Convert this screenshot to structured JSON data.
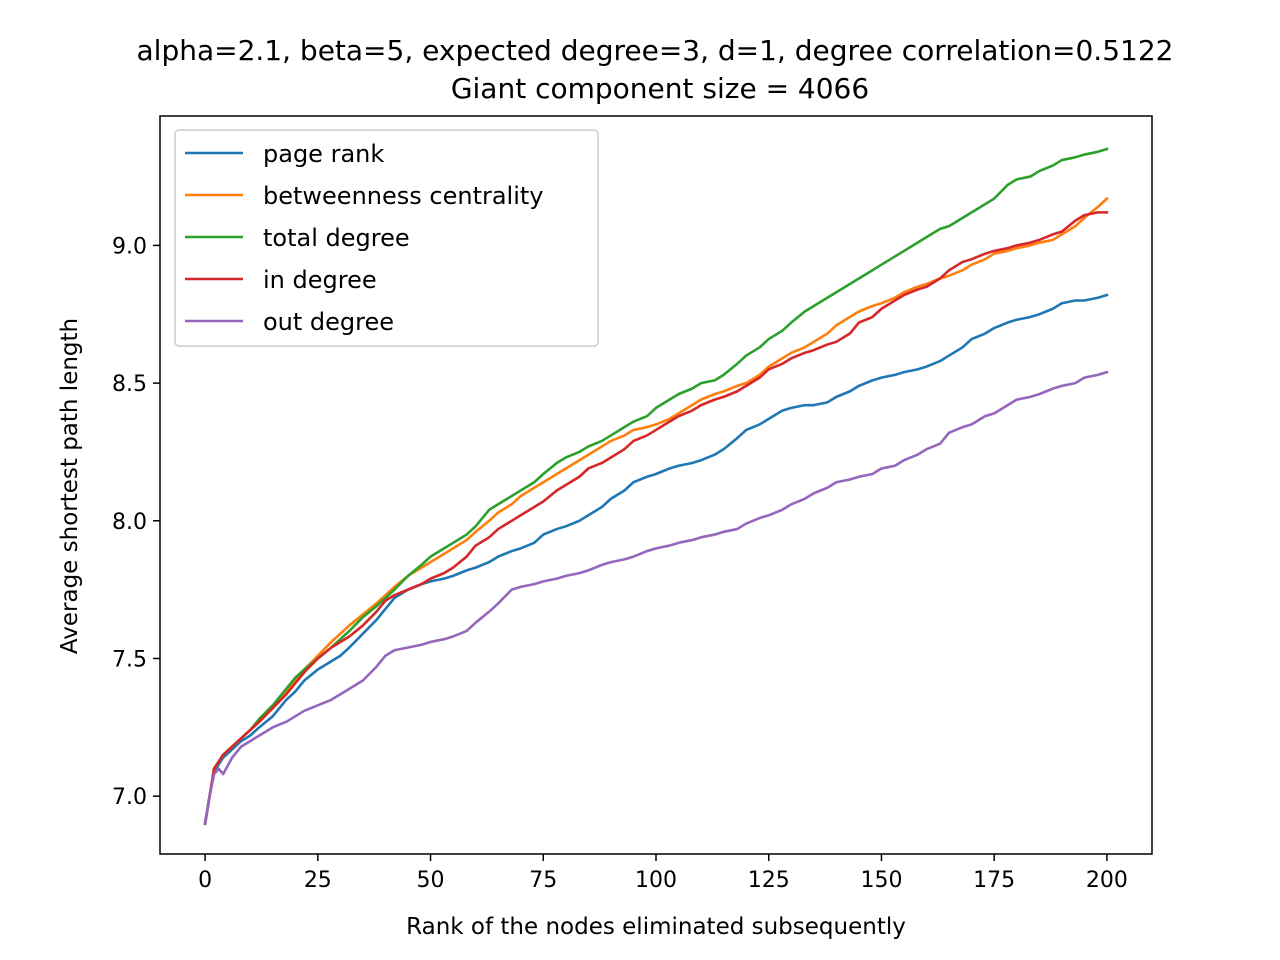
{
  "chart_data": {
    "type": "line",
    "title_line1": "alpha=2.1, beta=5, expected degree=3, d=1, degree correlation=0.5122",
    "title_line2": "Giant component size = 4066",
    "xlabel": "Rank of the nodes eliminated subsequently",
    "ylabel": "Average shortest path length",
    "xlim": [
      -10,
      210
    ],
    "ylim": [
      6.79,
      9.47
    ],
    "xticks": [
      0,
      25,
      50,
      75,
      100,
      125,
      150,
      175,
      200
    ],
    "xtick_labels": [
      "0",
      "25",
      "50",
      "75",
      "100",
      "125",
      "150",
      "175",
      "200"
    ],
    "yticks": [
      7.0,
      7.5,
      8.0,
      8.5,
      9.0
    ],
    "ytick_labels": [
      "7.0",
      "7.5",
      "8.0",
      "8.5",
      "9.0"
    ],
    "grid": false,
    "legend_position": "top-left",
    "series": [
      {
        "name": "page rank",
        "color": "#1f77b4",
        "x": [
          0,
          1,
          2,
          4,
          6,
          8,
          10,
          12,
          15,
          18,
          20,
          22,
          25,
          28,
          30,
          32,
          35,
          38,
          40,
          42,
          45,
          48,
          50,
          53,
          55,
          58,
          60,
          63,
          65,
          68,
          70,
          73,
          75,
          78,
          80,
          83,
          85,
          88,
          90,
          93,
          95,
          98,
          100,
          103,
          105,
          108,
          110,
          113,
          115,
          118,
          120,
          123,
          125,
          128,
          130,
          133,
          135,
          138,
          140,
          143,
          145,
          148,
          150,
          153,
          155,
          158,
          160,
          163,
          165,
          168,
          170,
          173,
          175,
          178,
          180,
          183,
          185,
          188,
          190,
          193,
          195,
          198,
          200
        ],
        "values": [
          6.9,
          7.0,
          7.09,
          7.14,
          7.17,
          7.2,
          7.22,
          7.25,
          7.29,
          7.35,
          7.38,
          7.42,
          7.46,
          7.49,
          7.51,
          7.54,
          7.59,
          7.64,
          7.68,
          7.72,
          7.75,
          7.77,
          7.78,
          7.79,
          7.8,
          7.82,
          7.83,
          7.85,
          7.87,
          7.89,
          7.9,
          7.92,
          7.95,
          7.97,
          7.98,
          8.0,
          8.02,
          8.05,
          8.08,
          8.11,
          8.14,
          8.16,
          8.17,
          8.19,
          8.2,
          8.21,
          8.22,
          8.24,
          8.26,
          8.3,
          8.33,
          8.35,
          8.37,
          8.4,
          8.41,
          8.42,
          8.42,
          8.43,
          8.45,
          8.47,
          8.49,
          8.51,
          8.52,
          8.53,
          8.54,
          8.55,
          8.56,
          8.58,
          8.6,
          8.63,
          8.66,
          8.68,
          8.7,
          8.72,
          8.73,
          8.74,
          8.75,
          8.77,
          8.79,
          8.8,
          8.8,
          8.81,
          8.82
        ]
      },
      {
        "name": "betweenness centrality",
        "color": "#ff7f0e",
        "x": [
          0,
          1,
          2,
          4,
          6,
          8,
          10,
          12,
          15,
          18,
          20,
          22,
          25,
          28,
          30,
          32,
          35,
          38,
          40,
          42,
          45,
          48,
          50,
          53,
          55,
          58,
          60,
          63,
          65,
          68,
          70,
          73,
          75,
          78,
          80,
          83,
          85,
          88,
          90,
          93,
          95,
          98,
          100,
          103,
          105,
          108,
          110,
          113,
          115,
          118,
          120,
          123,
          125,
          128,
          130,
          133,
          135,
          138,
          140,
          143,
          145,
          148,
          150,
          153,
          155,
          158,
          160,
          163,
          165,
          168,
          170,
          173,
          175,
          178,
          180,
          183,
          185,
          188,
          190,
          193,
          195,
          198,
          200
        ],
        "values": [
          6.9,
          7.0,
          7.1,
          7.15,
          7.18,
          7.21,
          7.24,
          7.27,
          7.32,
          7.38,
          7.42,
          7.46,
          7.51,
          7.56,
          7.59,
          7.62,
          7.66,
          7.7,
          7.73,
          7.76,
          7.8,
          7.83,
          7.85,
          7.88,
          7.9,
          7.93,
          7.96,
          8.0,
          8.03,
          8.06,
          8.09,
          8.12,
          8.14,
          8.17,
          8.19,
          8.22,
          8.24,
          8.27,
          8.29,
          8.31,
          8.33,
          8.34,
          8.35,
          8.37,
          8.39,
          8.42,
          8.44,
          8.46,
          8.47,
          8.49,
          8.5,
          8.53,
          8.56,
          8.59,
          8.61,
          8.63,
          8.65,
          8.68,
          8.71,
          8.74,
          8.76,
          8.78,
          8.79,
          8.81,
          8.83,
          8.85,
          8.86,
          8.88,
          8.89,
          8.91,
          8.93,
          8.95,
          8.97,
          8.98,
          8.99,
          9.0,
          9.01,
          9.02,
          9.04,
          9.07,
          9.1,
          9.14,
          9.17
        ]
      },
      {
        "name": "total degree",
        "color": "#2ca02c",
        "x": [
          0,
          1,
          2,
          4,
          6,
          8,
          10,
          12,
          15,
          18,
          20,
          22,
          25,
          28,
          30,
          32,
          35,
          38,
          40,
          42,
          45,
          48,
          50,
          53,
          55,
          58,
          60,
          63,
          65,
          68,
          70,
          73,
          75,
          78,
          80,
          83,
          85,
          88,
          90,
          93,
          95,
          98,
          100,
          103,
          105,
          108,
          110,
          113,
          115,
          118,
          120,
          123,
          125,
          128,
          130,
          133,
          135,
          138,
          140,
          143,
          145,
          148,
          150,
          153,
          155,
          158,
          160,
          163,
          165,
          168,
          170,
          173,
          175,
          178,
          180,
          183,
          185,
          188,
          190,
          193,
          195,
          198,
          200
        ],
        "values": [
          6.9,
          7.0,
          7.1,
          7.15,
          7.18,
          7.21,
          7.24,
          7.28,
          7.33,
          7.39,
          7.43,
          7.46,
          7.5,
          7.54,
          7.57,
          7.6,
          7.65,
          7.69,
          7.72,
          7.75,
          7.8,
          7.84,
          7.87,
          7.9,
          7.92,
          7.95,
          7.98,
          8.04,
          8.06,
          8.09,
          8.11,
          8.14,
          8.17,
          8.21,
          8.23,
          8.25,
          8.27,
          8.29,
          8.31,
          8.34,
          8.36,
          8.38,
          8.41,
          8.44,
          8.46,
          8.48,
          8.5,
          8.51,
          8.53,
          8.57,
          8.6,
          8.63,
          8.66,
          8.69,
          8.72,
          8.76,
          8.78,
          8.81,
          8.83,
          8.86,
          8.88,
          8.91,
          8.93,
          8.96,
          8.98,
          9.01,
          9.03,
          9.06,
          9.07,
          9.1,
          9.12,
          9.15,
          9.17,
          9.22,
          9.24,
          9.25,
          9.27,
          9.29,
          9.31,
          9.32,
          9.33,
          9.34,
          9.35
        ]
      },
      {
        "name": "in degree",
        "color": "#d62728",
        "x": [
          0,
          1,
          2,
          4,
          6,
          8,
          10,
          12,
          15,
          18,
          20,
          22,
          25,
          28,
          30,
          32,
          35,
          38,
          40,
          42,
          45,
          48,
          50,
          53,
          55,
          58,
          60,
          63,
          65,
          68,
          70,
          73,
          75,
          78,
          80,
          83,
          85,
          88,
          90,
          93,
          95,
          98,
          100,
          103,
          105,
          108,
          110,
          113,
          115,
          118,
          120,
          123,
          125,
          128,
          130,
          133,
          135,
          138,
          140,
          143,
          145,
          148,
          150,
          153,
          155,
          158,
          160,
          163,
          165,
          168,
          170,
          173,
          175,
          178,
          180,
          183,
          185,
          188,
          190,
          193,
          195,
          198,
          200
        ],
        "values": [
          6.9,
          7.0,
          7.1,
          7.15,
          7.18,
          7.21,
          7.24,
          7.27,
          7.32,
          7.37,
          7.41,
          7.45,
          7.5,
          7.54,
          7.56,
          7.58,
          7.62,
          7.67,
          7.71,
          7.73,
          7.75,
          7.77,
          7.79,
          7.81,
          7.83,
          7.87,
          7.91,
          7.94,
          7.97,
          8.0,
          8.02,
          8.05,
          8.07,
          8.11,
          8.13,
          8.16,
          8.19,
          8.21,
          8.23,
          8.26,
          8.29,
          8.31,
          8.33,
          8.36,
          8.38,
          8.4,
          8.42,
          8.44,
          8.45,
          8.47,
          8.49,
          8.52,
          8.55,
          8.57,
          8.59,
          8.61,
          8.62,
          8.64,
          8.65,
          8.68,
          8.72,
          8.74,
          8.77,
          8.8,
          8.82,
          8.84,
          8.85,
          8.88,
          8.91,
          8.94,
          8.95,
          8.97,
          8.98,
          8.99,
          9.0,
          9.01,
          9.02,
          9.04,
          9.05,
          9.09,
          9.11,
          9.12,
          9.12
        ]
      },
      {
        "name": "out degree",
        "color": "#9467bd",
        "x": [
          0,
          1,
          2,
          3,
          4,
          5,
          6,
          8,
          10,
          12,
          15,
          18,
          20,
          22,
          25,
          28,
          30,
          32,
          35,
          38,
          40,
          42,
          45,
          48,
          50,
          53,
          55,
          58,
          60,
          63,
          65,
          68,
          70,
          73,
          75,
          78,
          80,
          83,
          85,
          88,
          90,
          93,
          95,
          98,
          100,
          103,
          105,
          108,
          110,
          113,
          115,
          118,
          120,
          123,
          125,
          128,
          130,
          133,
          135,
          138,
          140,
          143,
          145,
          148,
          150,
          153,
          155,
          158,
          160,
          163,
          165,
          168,
          170,
          173,
          175,
          178,
          180,
          183,
          185,
          188,
          190,
          193,
          195,
          198,
          200
        ],
        "values": [
          6.9,
          7.0,
          7.08,
          7.1,
          7.08,
          7.11,
          7.14,
          7.18,
          7.2,
          7.22,
          7.25,
          7.27,
          7.29,
          7.31,
          7.33,
          7.35,
          7.37,
          7.39,
          7.42,
          7.47,
          7.51,
          7.53,
          7.54,
          7.55,
          7.56,
          7.57,
          7.58,
          7.6,
          7.63,
          7.67,
          7.7,
          7.75,
          7.76,
          7.77,
          7.78,
          7.79,
          7.8,
          7.81,
          7.82,
          7.84,
          7.85,
          7.86,
          7.87,
          7.89,
          7.9,
          7.91,
          7.92,
          7.93,
          7.94,
          7.95,
          7.96,
          7.97,
          7.99,
          8.01,
          8.02,
          8.04,
          8.06,
          8.08,
          8.1,
          8.12,
          8.14,
          8.15,
          8.16,
          8.17,
          8.19,
          8.2,
          8.22,
          8.24,
          8.26,
          8.28,
          8.32,
          8.34,
          8.35,
          8.38,
          8.39,
          8.42,
          8.44,
          8.45,
          8.46,
          8.48,
          8.49,
          8.5,
          8.52,
          8.53,
          8.54
        ]
      }
    ]
  }
}
